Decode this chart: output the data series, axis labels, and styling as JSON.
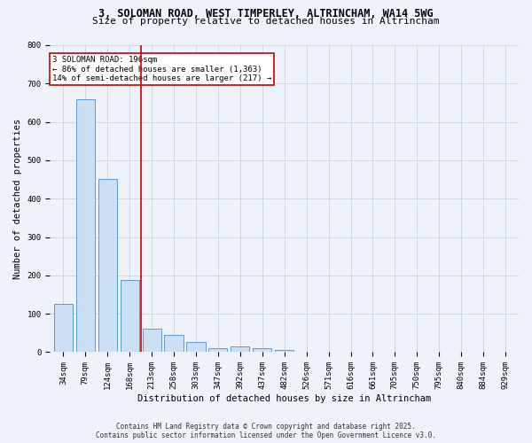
{
  "title_line1": "3, SOLOMAN ROAD, WEST TIMPERLEY, ALTRINCHAM, WA14 5WG",
  "title_line2": "Size of property relative to detached houses in Altrincham",
  "bar_labels": [
    "34sqm",
    "79sqm",
    "124sqm",
    "168sqm",
    "213sqm",
    "258sqm",
    "303sqm",
    "347sqm",
    "392sqm",
    "437sqm",
    "482sqm",
    "526sqm",
    "571sqm",
    "616sqm",
    "661sqm",
    "705sqm",
    "750sqm",
    "795sqm",
    "840sqm",
    "884sqm",
    "929sqm"
  ],
  "bar_values": [
    126,
    660,
    452,
    188,
    60,
    46,
    26,
    10,
    14,
    10,
    6,
    1,
    1,
    0,
    1,
    0,
    0,
    0,
    0,
    0,
    0
  ],
  "bar_color": "#cce0f5",
  "bar_edge_color": "#5b9bd5",
  "grid_color": "#d0d8e8",
  "background_color": "#eef2fb",
  "vline_color": "#cc0000",
  "annotation_text": "3 SOLOMAN ROAD: 196sqm\n← 86% of detached houses are smaller (1,363)\n14% of semi-detached houses are larger (217) →",
  "annotation_box_color": "#ffffff",
  "annotation_box_edge": "#cc0000",
  "ylabel": "Number of detached properties",
  "xlabel": "Distribution of detached houses by size in Altrincham",
  "ylim": [
    0,
    800
  ],
  "yticks": [
    0,
    100,
    200,
    300,
    400,
    500,
    600,
    700,
    800
  ],
  "footer_line1": "Contains HM Land Registry data © Crown copyright and database right 2025.",
  "footer_line2": "Contains public sector information licensed under the Open Government Licence v3.0.",
  "title_fontsize": 8.5,
  "subtitle_fontsize": 8,
  "axis_label_fontsize": 7.5,
  "tick_fontsize": 6.5,
  "annotation_fontsize": 6.5,
  "footer_fontsize": 5.5
}
